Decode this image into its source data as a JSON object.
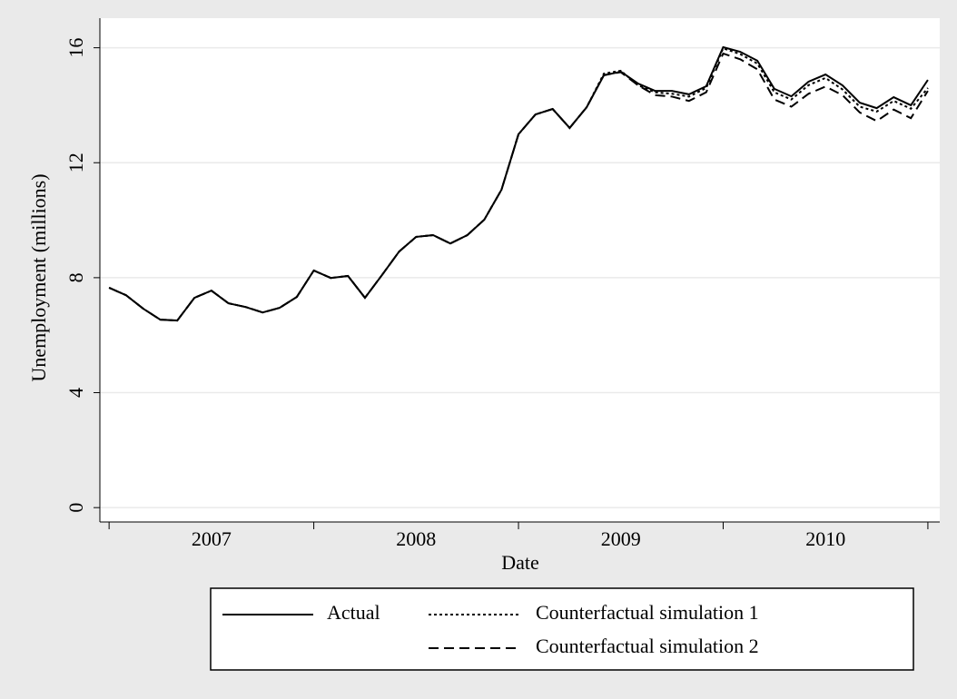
{
  "chart_data": {
    "type": "line",
    "y_label": "Unemployment (millions)",
    "x_label": "Date",
    "x": [
      2007,
      2007.083,
      2007.167,
      2007.25,
      2007.333,
      2007.417,
      2007.5,
      2007.583,
      2007.667,
      2007.75,
      2007.833,
      2007.917,
      2008,
      2008.083,
      2008.167,
      2008.25,
      2008.333,
      2008.417,
      2008.5,
      2008.583,
      2008.667,
      2008.75,
      2008.833,
      2008.917,
      2009,
      2009.083,
      2009.167,
      2009.25,
      2009.333,
      2009.417,
      2009.5,
      2009.583,
      2009.667,
      2009.75,
      2009.833,
      2009.917,
      2010,
      2010.083,
      2010.167,
      2010.25,
      2010.333,
      2010.417,
      2010.5,
      2010.583,
      2010.667,
      2010.75,
      2010.833,
      2010.917,
      2011
    ],
    "series": [
      {
        "name": "Actual",
        "color": "#000000",
        "dash": "none",
        "values": [
          7.65,
          7.39,
          6.92,
          6.54,
          6.51,
          7.3,
          7.55,
          7.11,
          6.98,
          6.79,
          6.95,
          7.33,
          8.25,
          7.99,
          8.06,
          7.3,
          8.09,
          8.91,
          9.42,
          9.48,
          9.19,
          9.48,
          10.02,
          11.06,
          12.99,
          13.68,
          13.87,
          13.21,
          13.93,
          15.04,
          15.17,
          14.76,
          14.5,
          14.5,
          14.38,
          14.66,
          16.02,
          15.86,
          15.55,
          14.57,
          14.31,
          14.82,
          15.07,
          14.69,
          14.09,
          13.9,
          14.28,
          14.0,
          14.88
        ]
      },
      {
        "name": "Counterfactual simulation 1",
        "color": "#000000",
        "dash": "3,3",
        "values": [
          7.65,
          7.39,
          6.92,
          6.54,
          6.51,
          7.3,
          7.55,
          7.11,
          6.98,
          6.79,
          6.95,
          7.33,
          8.25,
          7.99,
          8.06,
          7.3,
          8.09,
          8.91,
          9.42,
          9.48,
          9.19,
          9.48,
          10.02,
          11.06,
          12.99,
          13.68,
          13.87,
          13.21,
          13.93,
          15.1,
          15.2,
          14.7,
          14.45,
          14.4,
          14.3,
          14.6,
          15.98,
          15.78,
          15.45,
          14.45,
          14.2,
          14.7,
          14.95,
          14.55,
          13.95,
          13.78,
          14.15,
          13.88,
          14.6
        ]
      },
      {
        "name": "Counterfactual simulation 2",
        "color": "#000000",
        "dash": "11,6",
        "values": [
          7.65,
          7.39,
          6.92,
          6.54,
          6.51,
          7.3,
          7.55,
          7.11,
          6.98,
          6.79,
          6.95,
          7.33,
          8.25,
          7.99,
          8.06,
          7.3,
          8.09,
          8.91,
          9.42,
          9.48,
          9.19,
          9.48,
          10.02,
          11.06,
          12.99,
          13.68,
          13.87,
          13.21,
          13.93,
          15.05,
          15.15,
          14.7,
          14.35,
          14.3,
          14.15,
          14.45,
          15.8,
          15.6,
          15.25,
          14.2,
          13.95,
          14.4,
          14.65,
          14.35,
          13.75,
          13.45,
          13.85,
          13.55,
          14.5
        ]
      }
    ],
    "xlim": [
      2006.955,
      2011.058
    ],
    "xticks": [
      {
        "value": 2007.5,
        "label": "2007"
      },
      {
        "value": 2008.5,
        "label": "2008"
      },
      {
        "value": 2009.5,
        "label": "2009"
      },
      {
        "value": 2010.5,
        "label": "2010"
      }
    ],
    "xtick_marks": [
      2007,
      2008,
      2009,
      2010,
      2011
    ],
    "ylim": [
      -0.5,
      17.03
    ],
    "yticks": [
      0,
      4,
      8,
      12,
      16
    ],
    "grid": true,
    "legend": "bottom"
  }
}
